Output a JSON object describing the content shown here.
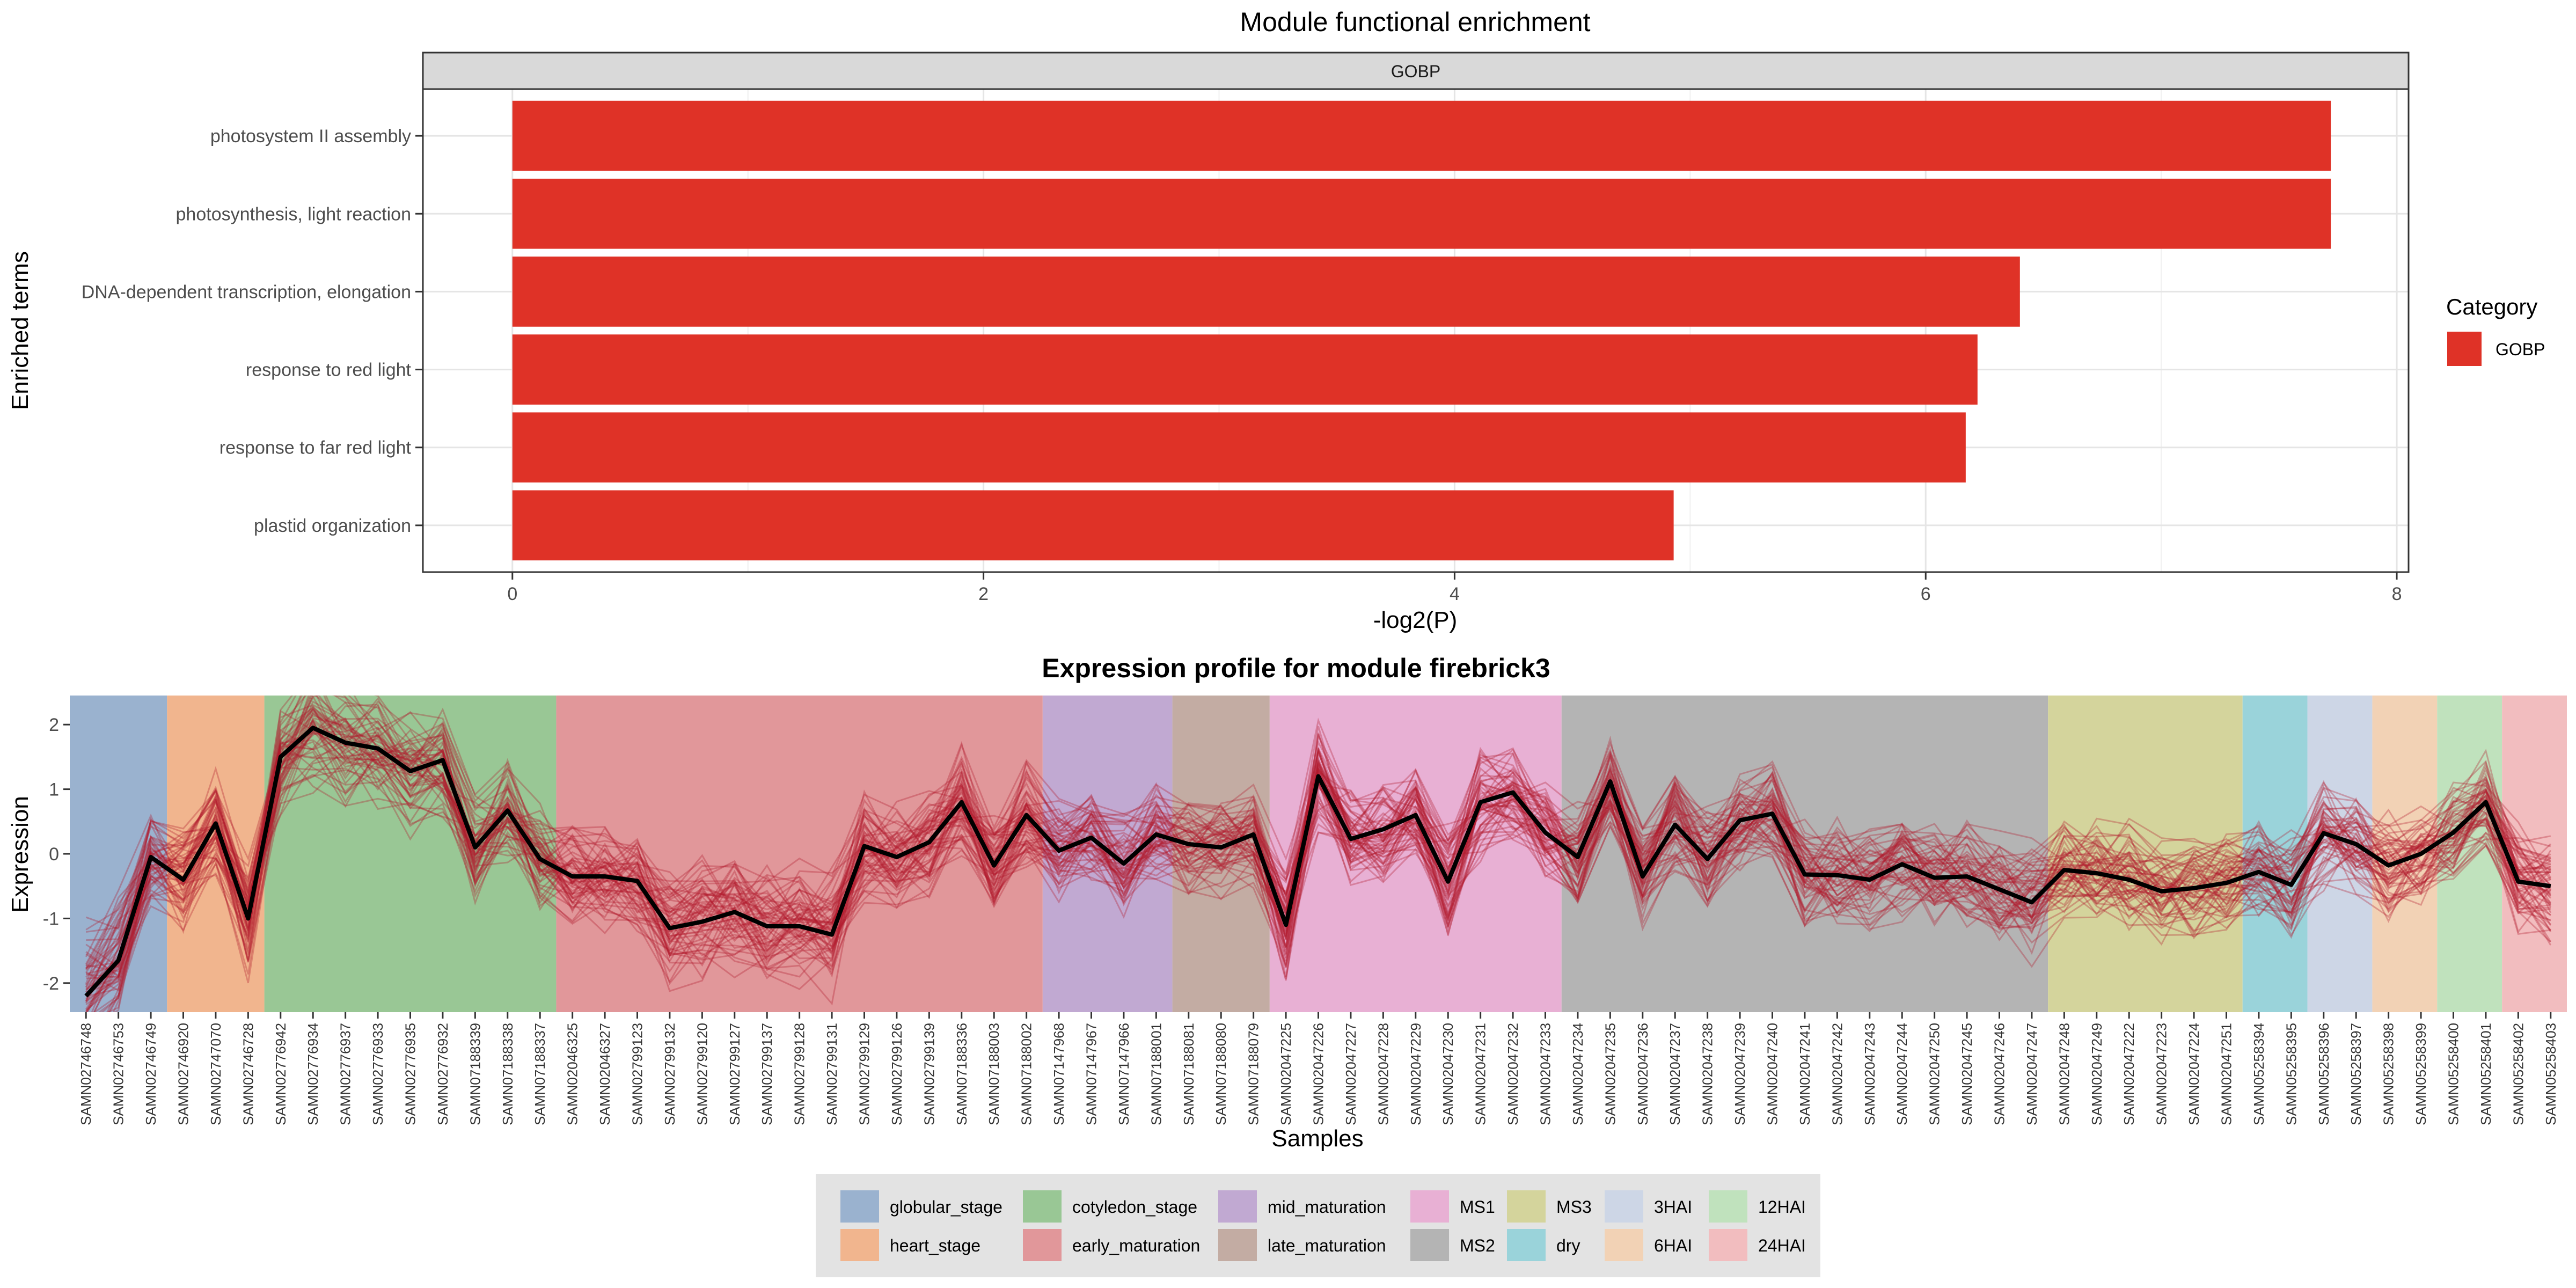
{
  "chart_data": [
    {
      "type": "bar",
      "orientation": "horizontal",
      "title": "Module functional enrichment",
      "facet": "GOBP",
      "xlabel": "-log2(P)",
      "ylabel": "Enriched terms",
      "xlim": [
        0,
        8
      ],
      "xticks": [
        0,
        2,
        4,
        6,
        8
      ],
      "categories": [
        "photosystem II assembly",
        "photosynthesis, light reaction",
        "DNA-dependent transcription, elongation",
        "response to red light",
        "response to far red light",
        "plastid organization"
      ],
      "values": [
        7.72,
        7.72,
        6.4,
        6.22,
        6.17,
        4.93
      ],
      "bar_color": "#df3227",
      "legend": {
        "title": "Category",
        "items": [
          {
            "label": "GOBP",
            "color": "#df3227"
          }
        ]
      }
    },
    {
      "type": "line",
      "title": "Expression profile for module firebrick3",
      "xlabel": "Samples",
      "ylabel": "Expression",
      "ylim": [
        -2.45,
        2.45
      ],
      "yticks": [
        2,
        1,
        0,
        -1,
        -2
      ],
      "samples": [
        "SAMN02746748",
        "SAMN02746753",
        "SAMN02746749",
        "SAMN02746920",
        "SAMN02747070",
        "SAMN02746728",
        "SAMN02776942",
        "SAMN02776934",
        "SAMN02776937",
        "SAMN02776933",
        "SAMN02776935",
        "SAMN02776932",
        "SAMN07188339",
        "SAMN07188338",
        "SAMN07188337",
        "SAMN02046325",
        "SAMN02046327",
        "SAMN02799123",
        "SAMN02799132",
        "SAMN02799120",
        "SAMN02799127",
        "SAMN02799137",
        "SAMN02799128",
        "SAMN02799131",
        "SAMN02799129",
        "SAMN02799126",
        "SAMN02799139",
        "SAMN07188336",
        "SAMN07188003",
        "SAMN07188002",
        "SAMN07147968",
        "SAMN07147967",
        "SAMN07147966",
        "SAMN07188001",
        "SAMN07188081",
        "SAMN07188080",
        "SAMN07188079",
        "SAMN02047225",
        "SAMN02047226",
        "SAMN02047227",
        "SAMN02047228",
        "SAMN02047229",
        "SAMN02047230",
        "SAMN02047231",
        "SAMN02047232",
        "SAMN02047233",
        "SAMN02047234",
        "SAMN02047235",
        "SAMN02047236",
        "SAMN02047237",
        "SAMN02047238",
        "SAMN02047239",
        "SAMN02047240",
        "SAMN02047241",
        "SAMN02047242",
        "SAMN02047243",
        "SAMN02047244",
        "SAMN02047250",
        "SAMN02047245",
        "SAMN02047246",
        "SAMN02047247",
        "SAMN02047248",
        "SAMN02047249",
        "SAMN02047222",
        "SAMN02047223",
        "SAMN02047224",
        "SAMN02047251",
        "SAMN05258394",
        "SAMN05258395",
        "SAMN05258396",
        "SAMN05258397",
        "SAMN05258398",
        "SAMN05258399",
        "SAMN05258400",
        "SAMN05258401",
        "SAMN05258402",
        "SAMN05258403"
      ],
      "mean_profile": [
        -2.2,
        -1.65,
        -0.05,
        -0.4,
        0.47,
        -1.0,
        1.5,
        1.95,
        1.72,
        1.63,
        1.28,
        1.45,
        0.1,
        0.67,
        -0.08,
        -0.35,
        -0.35,
        -0.42,
        -1.15,
        -1.05,
        -0.9,
        -1.12,
        -1.12,
        -1.25,
        0.12,
        -0.05,
        0.18,
        0.8,
        -0.18,
        0.6,
        0.05,
        0.25,
        -0.15,
        0.3,
        0.15,
        0.1,
        0.3,
        -1.1,
        1.2,
        0.23,
        0.38,
        0.6,
        -0.43,
        0.8,
        0.95,
        0.33,
        -0.05,
        1.12,
        -0.35,
        0.45,
        -0.08,
        0.52,
        0.62,
        -0.32,
        -0.33,
        -0.4,
        -0.16,
        -0.37,
        -0.35,
        -0.55,
        -0.75,
        -0.25,
        -0.3,
        -0.4,
        -0.58,
        -0.53,
        -0.45,
        -0.28,
        -0.48,
        0.32,
        0.15,
        -0.18,
        0.0,
        0.33,
        0.8,
        -0.43,
        -0.5
      ],
      "mean_color": "#000000",
      "gene_line_color": "#b2182b",
      "gene_line_count": 60,
      "stages": [
        {
          "name": "globular_stage",
          "start": 0,
          "end": 2,
          "color": "#9ab2cf"
        },
        {
          "name": "heart_stage",
          "start": 3,
          "end": 5,
          "color": "#f1b58e"
        },
        {
          "name": "cotyledon_stage",
          "start": 6,
          "end": 14,
          "color": "#99c795"
        },
        {
          "name": "early_maturation",
          "start": 15,
          "end": 29,
          "color": "#e1979a"
        },
        {
          "name": "mid_maturation",
          "start": 30,
          "end": 33,
          "color": "#c1a9d2"
        },
        {
          "name": "late_maturation",
          "start": 34,
          "end": 36,
          "color": "#c3aca3"
        },
        {
          "name": "MS1",
          "start": 37,
          "end": 45,
          "color": "#e8b0d4"
        },
        {
          "name": "MS2",
          "start": 46,
          "end": 60,
          "color": "#b4b4b4"
        },
        {
          "name": "MS3",
          "start": 61,
          "end": 66,
          "color": "#d4d49c"
        },
        {
          "name": "dry",
          "start": 67,
          "end": 68,
          "color": "#9ad3da"
        },
        {
          "name": "3HAI",
          "start": 69,
          "end": 70,
          "color": "#cdd6e6"
        },
        {
          "name": "6HAI",
          "start": 71,
          "end": 72,
          "color": "#f2d2b5"
        },
        {
          "name": "12HAI",
          "start": 73,
          "end": 74,
          "color": "#c0e2bd"
        },
        {
          "name": "24HAI",
          "start": 75,
          "end": 76,
          "color": "#f2bdbf"
        }
      ],
      "legend_order": [
        "globular_stage",
        "heart_stage",
        "cotyledon_stage",
        "early_maturation",
        "mid_maturation",
        "late_maturation",
        "MS1",
        "MS2",
        "MS3",
        "dry",
        "3HAI",
        "6HAI",
        "12HAI",
        "24HAI"
      ]
    }
  ]
}
